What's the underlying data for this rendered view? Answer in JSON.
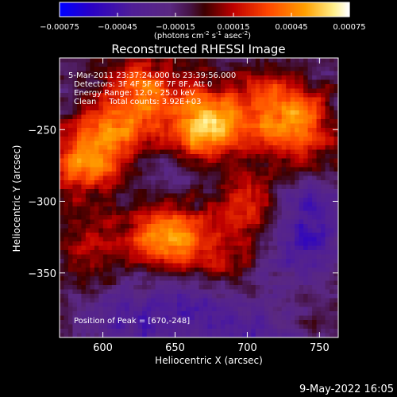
{
  "chart_data": {
    "type": "heatmap",
    "title": "Reconstructed RHESSI Image",
    "xlabel": "Heliocentric X (arcsec)",
    "ylabel": "Heliocentric Y (arcsec)",
    "xlim": [
      570,
      763
    ],
    "ylim": [
      -395,
      -200
    ],
    "x_ticks": [
      600,
      650,
      700,
      750
    ],
    "y_ticks": [
      -250,
      -300,
      -350
    ],
    "grid": false,
    "colorbar": {
      "colormap": "red-temperature",
      "range": [
        -0.00075,
        0.00075
      ],
      "tick_labels": [
        "-0.00075",
        "-0.00045",
        "-0.00015",
        "0.00015",
        "0.00045",
        "0.00075"
      ],
      "label": "(photons cm-2 s-1 asec-2)",
      "label_main": "(photons cm",
      "label_sup1": "-2",
      "label_mid1": " s",
      "label_sup2": "-1",
      "label_mid2": " asec",
      "label_sup3": "-2",
      "label_end": ")"
    },
    "annotations": {
      "time_range": "5-Mar-2011 23:37:24.000 to 23:39:56.000",
      "detectors": "Detectors: 3F 4F 5F 6F 7F 8F, Att 0",
      "energy_range": "Energy Range: 12.0 - 25.0 keV",
      "method_counts": "Clean     Total counts: 3.92E+03",
      "peak_position": "Position of Peak = [670,-248]"
    },
    "peak": [
      670,
      -248
    ],
    "sources": [
      {
        "x": 670,
        "y": -248,
        "amplitude": 0.00075
      },
      {
        "x": 645,
        "y": -325,
        "amplitude": 0.00068
      },
      {
        "x": 588,
        "y": -270,
        "amplitude": 0.0005
      },
      {
        "x": 610,
        "y": -250,
        "amplitude": 0.0004
      },
      {
        "x": 630,
        "y": -222,
        "amplitude": 0.0004
      },
      {
        "x": 715,
        "y": -235,
        "amplitude": 0.00045
      },
      {
        "x": 740,
        "y": -250,
        "amplitude": 0.0004
      },
      {
        "x": 700,
        "y": -305,
        "amplitude": 0.00038
      },
      {
        "x": 680,
        "y": -345,
        "amplitude": 0.00032
      },
      {
        "x": 592,
        "y": -335,
        "amplitude": 0.00028
      }
    ],
    "negative_regions": [
      {
        "x": 655,
        "y": -282,
        "amplitude": -0.00015
      },
      {
        "x": 740,
        "y": -320,
        "amplitude": -0.00035
      },
      {
        "x": 660,
        "y": -365,
        "amplitude": -0.0003
      },
      {
        "x": 615,
        "y": -385,
        "amplitude": -0.0002
      },
      {
        "x": 700,
        "y": -390,
        "amplitude": -0.0002
      }
    ]
  },
  "footer": {
    "timestamp": "9-May-2022 16:05"
  }
}
